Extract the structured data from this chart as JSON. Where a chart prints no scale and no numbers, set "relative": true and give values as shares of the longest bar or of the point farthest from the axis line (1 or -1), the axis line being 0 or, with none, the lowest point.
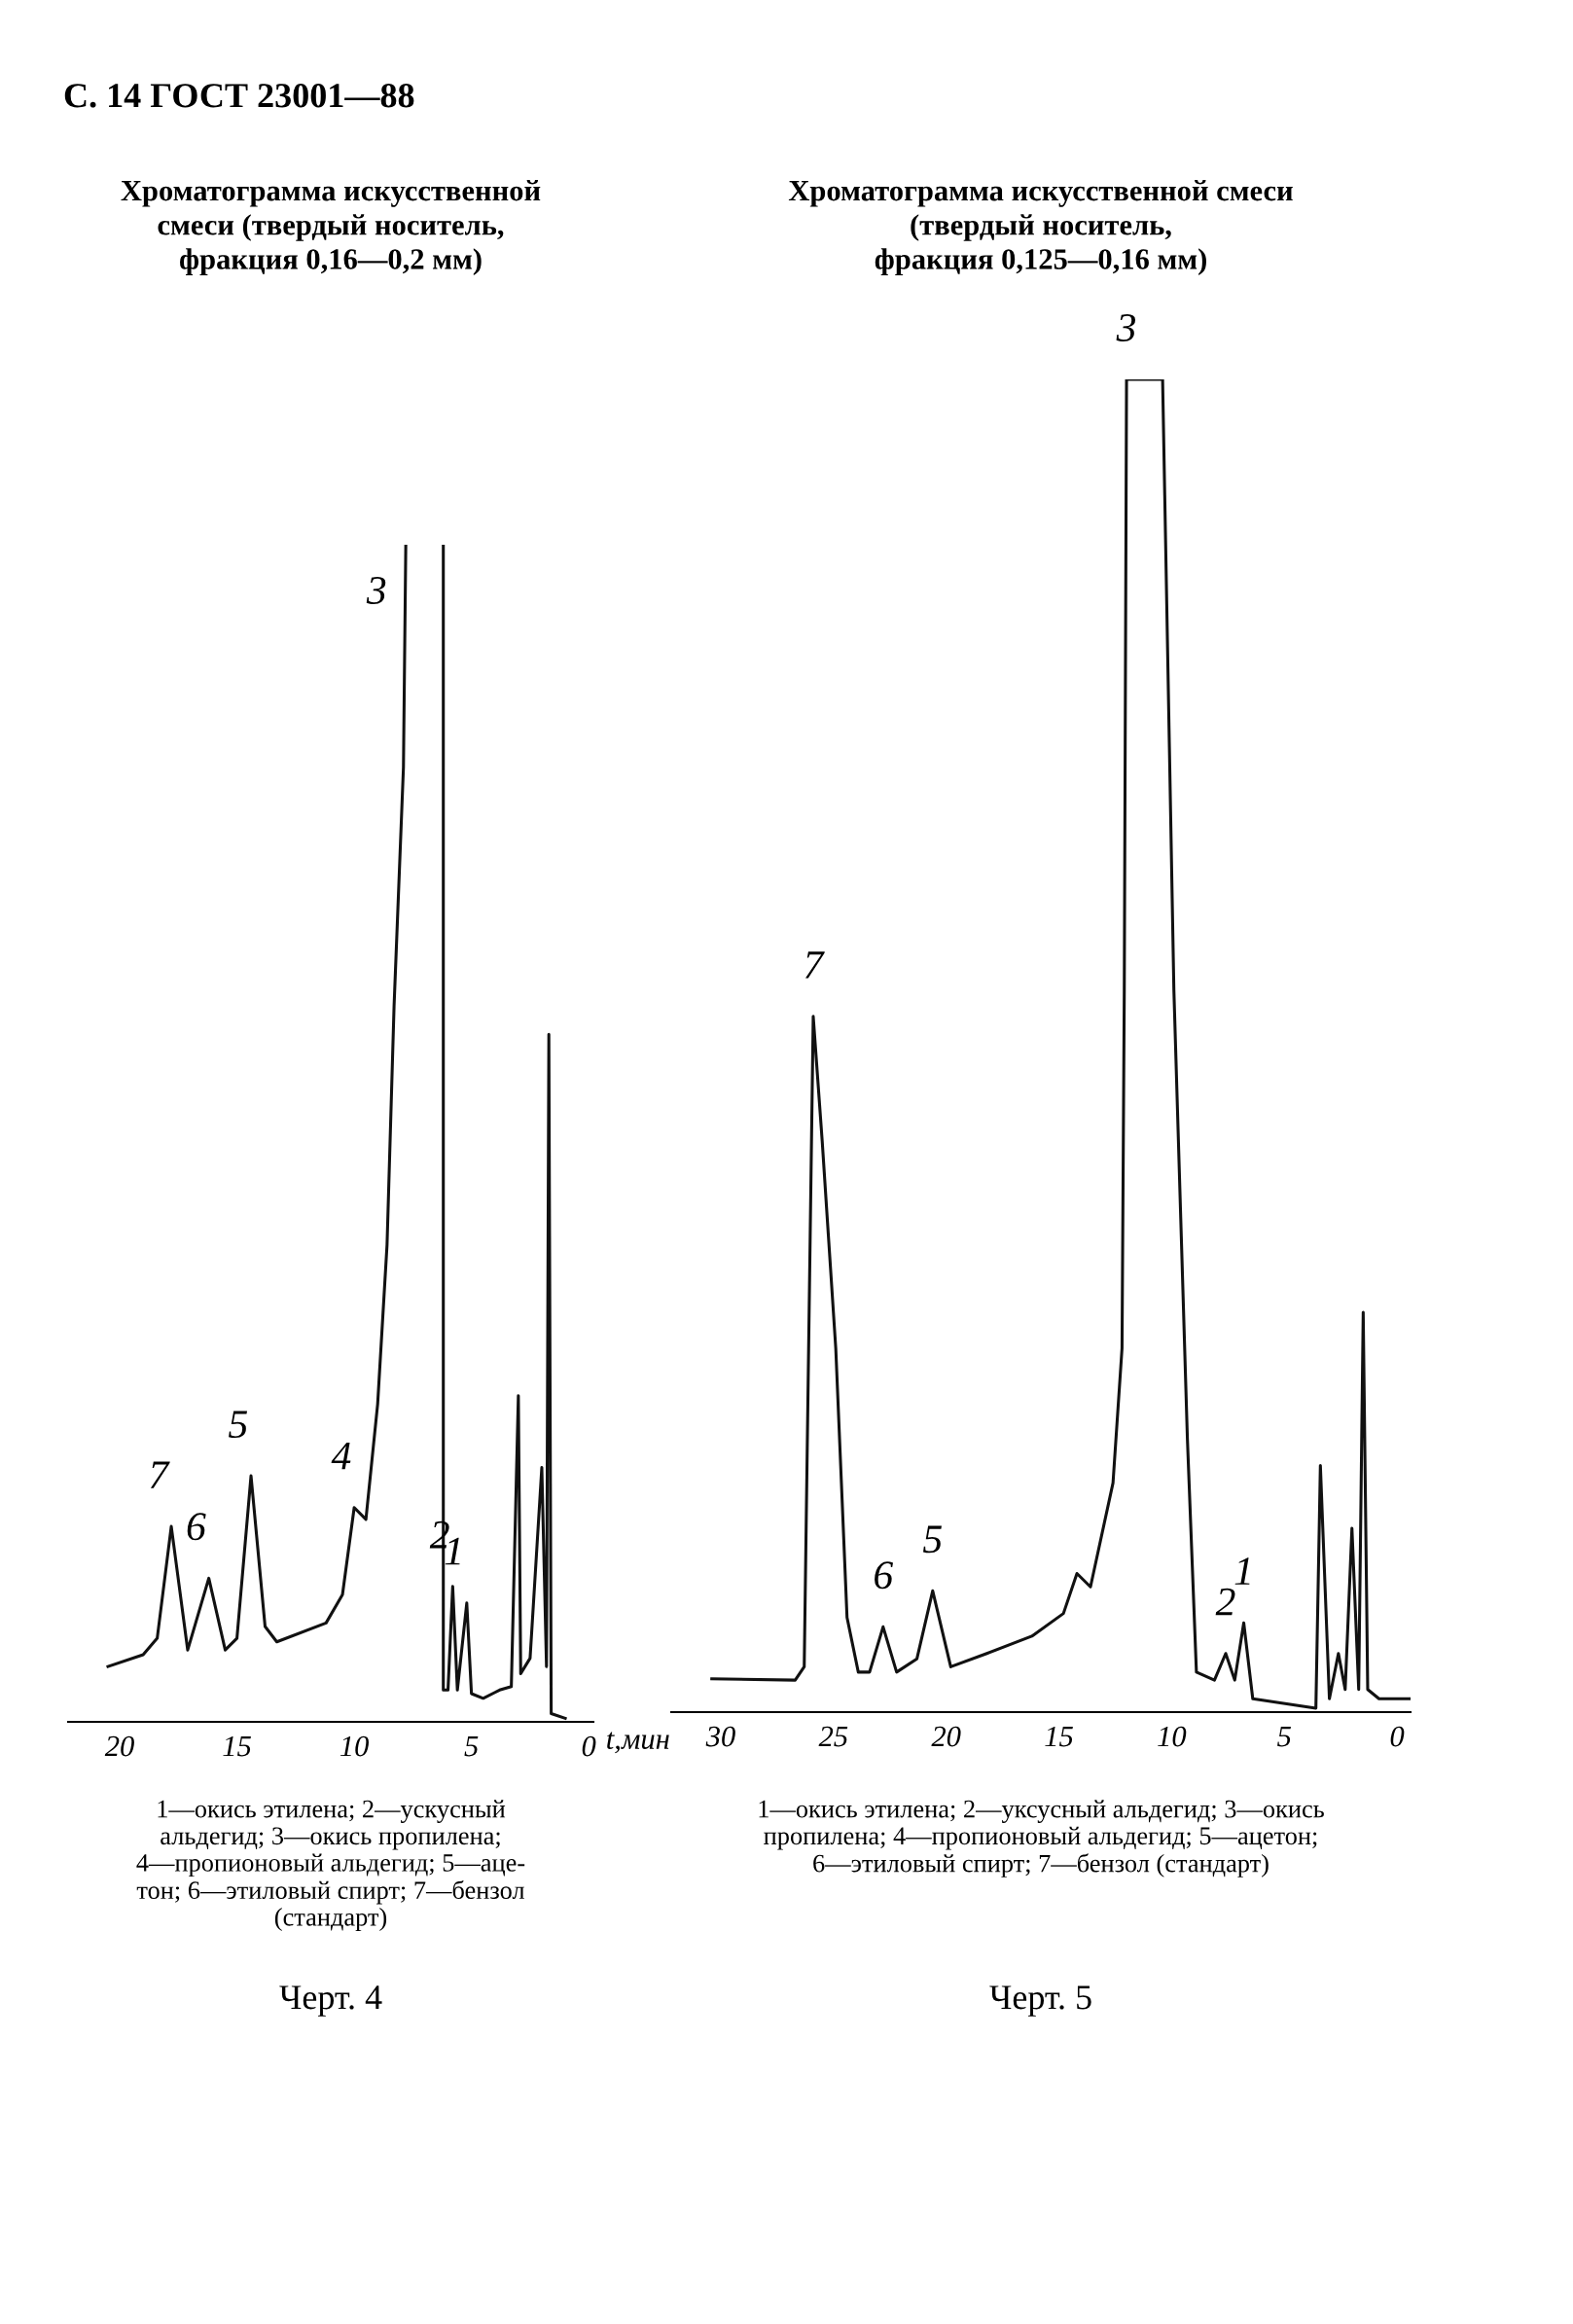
{
  "chart_data": [
    {
      "type": "line",
      "relative": true,
      "title": "Хроматограмма искусственной\nсмеси (твердый носитель,\nфракция 0,16—0,2 мм)",
      "xlim": [
        22.2,
        -0.2
      ],
      "xticks": [
        20,
        15,
        10,
        5,
        0
      ],
      "series": [
        {
          "color": "#111111",
          "x": [
            20.5,
            19.0,
            18.4,
            17.8,
            17.1,
            16.2,
            15.5,
            15.0,
            14.4,
            13.8,
            13.3,
            11.2,
            10.5,
            10.0,
            9.5,
            9.0,
            8.6,
            8.3,
            7.9,
            7.8,
            7.0,
            6.2,
            6.2,
            6.0,
            5.8,
            5.6,
            5.2,
            5.0,
            4.5,
            3.8,
            3.3,
            3.0,
            2.9,
            2.5,
            2.0,
            1.8,
            1.7,
            1.6,
            1.0
          ],
          "values": [
            0.047,
            0.057,
            0.071,
            0.166,
            0.061,
            0.122,
            0.061,
            0.071,
            0.209,
            0.081,
            0.068,
            0.084,
            0.108,
            0.182,
            0.172,
            0.27,
            0.405,
            0.608,
            0.811,
            1.0,
            null,
            1.0,
            0.027,
            0.027,
            0.115,
            0.027,
            0.101,
            0.024,
            0.02,
            0.027,
            0.03,
            0.277,
            0.041,
            0.054,
            0.216,
            0.047,
            0.584,
            0.007,
            0.003
          ]
        }
      ],
      "annotations": [
        "С. 14 ГОСТ 23001—88",
        {
          "text": "7",
          "x": 17.8,
          "y": 0.166
        },
        {
          "text": "6",
          "x": 16.2,
          "y": 0.122
        },
        {
          "text": "5",
          "x": 14.4,
          "y": 0.209
        },
        {
          "text": "4",
          "x": 10.0,
          "y": 0.182
        },
        {
          "text": "3",
          "x": 7.8,
          "y": 1.0
        },
        {
          "text": "2",
          "x": 5.8,
          "y": 0.115
        },
        {
          "text": "1",
          "x": 5.2,
          "y": 0.101
        },
        "1—окись этилена; 2—ускусный\nальдегид; 3—окись пропилена;\n4—пропионовый альдегид; 5—аце-\nтон; 6—этиловый спирт; 7—бензол\n(стандарт)",
        "Черт. 4"
      ]
    },
    {
      "type": "line",
      "relative": true,
      "title": "Хроматограмма искусственной смеси\n(твердый носитель,\nфракция 0,125—0,16 мм)",
      "xlabel": "t,мин",
      "xlim": [
        32.2,
        -0.6
      ],
      "xticks": [
        30,
        25,
        20,
        15,
        10,
        5,
        0
      ],
      "series": [
        {
          "color": "#111111",
          "x": [
            30.4,
            26.7,
            26.3,
            25.9,
            25.5,
            24.9,
            24.4,
            23.9,
            23.4,
            22.8,
            22.2,
            21.3,
            20.6,
            19.8,
            18.2,
            16.2,
            14.8,
            14.2,
            13.6,
            12.6,
            12.2,
            12.1,
            12.0,
            10.4,
            9.9,
            9.3,
            8.9,
            8.1,
            7.6,
            7.2,
            6.8,
            6.4,
            3.6,
            3.4,
            3.0,
            2.6,
            2.3,
            2.0,
            1.7,
            1.5,
            1.3,
            0.8,
            -0.6
          ],
          "values": [
            0.025,
            0.024,
            0.034,
            0.522,
            0.428,
            0.273,
            0.071,
            0.03,
            0.03,
            0.064,
            0.03,
            0.04,
            0.091,
            0.034,
            0.044,
            0.057,
            0.074,
            0.104,
            0.094,
            0.172,
            0.273,
            0.542,
            1.0,
            1.0,
            0.542,
            0.205,
            0.03,
            0.024,
            0.044,
            0.024,
            0.067,
            0.01,
            0.003,
            0.185,
            0.01,
            0.044,
            0.017,
            0.138,
            0.017,
            0.3,
            0.017,
            0.01,
            0.01
          ]
        }
      ],
      "annotations": [
        {
          "text": "7",
          "x": 25.9,
          "y": 0.522
        },
        {
          "text": "6",
          "x": 22.8,
          "y": 0.064
        },
        {
          "text": "5",
          "x": 20.6,
          "y": 0.091
        },
        {
          "text": "3",
          "x": 12.0,
          "y": 1.0
        },
        {
          "text": "2",
          "x": 7.6,
          "y": 0.044
        },
        {
          "text": "1",
          "x": 6.8,
          "y": 0.067
        },
        "1—окись этилена; 2—уксусный альдегид; 3—окись\nпропилена; 4—пропионовый альдегид; 5—ацетон;\n6—этиловый спирт; 7—бензол (стандарт)",
        "Черт. 5"
      ]
    }
  ]
}
